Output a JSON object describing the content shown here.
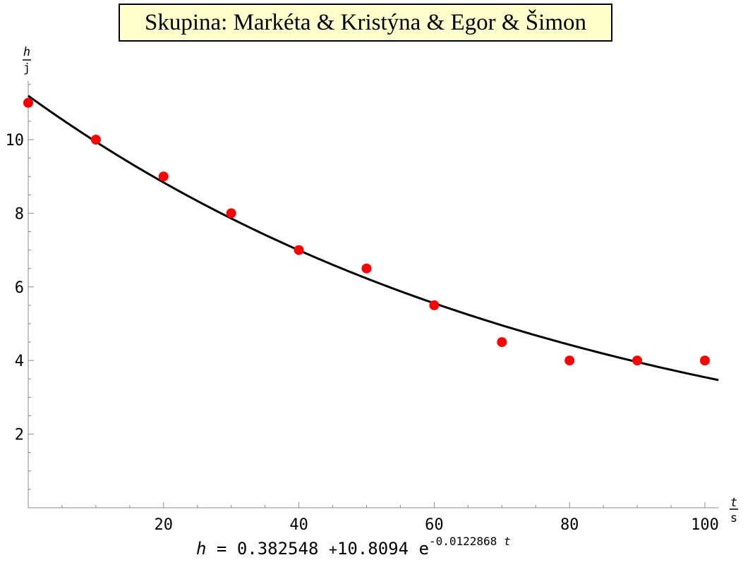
{
  "title": "Skupina: Markéta & Kristýna & Egor & Šimon",
  "formula": {
    "lhs": "h",
    "eq": "=",
    "c0": "0.382548",
    "plus": "+",
    "c1": "10.8094",
    "e": "e",
    "exp_coef": "-0.0122868",
    "exp_var": "t"
  },
  "chart_data": {
    "type": "scatter",
    "xlabel": "t/s",
    "ylabel": "h/j",
    "xlim": [
      0,
      102
    ],
    "ylim": [
      0,
      11.6
    ],
    "x_ticks": [
      20,
      40,
      60,
      80,
      100
    ],
    "y_ticks": [
      2,
      4,
      6,
      8,
      10
    ],
    "grid": false,
    "series": [
      {
        "kind": "points",
        "color": "#ff0000",
        "x": [
          0,
          10,
          20,
          30,
          40,
          50,
          60,
          70,
          80,
          90,
          100
        ],
        "y": [
          11,
          10,
          9,
          8,
          7,
          6.5,
          5.5,
          4.5,
          4,
          4,
          4
        ]
      },
      {
        "kind": "fit",
        "color": "#000000",
        "function": "h = 0.382548 + 10.8094 e^(-0.0122868 t)",
        "a": 0.382548,
        "b": 10.8094,
        "k": -0.0122868,
        "x_range": [
          0,
          102
        ]
      }
    ]
  }
}
